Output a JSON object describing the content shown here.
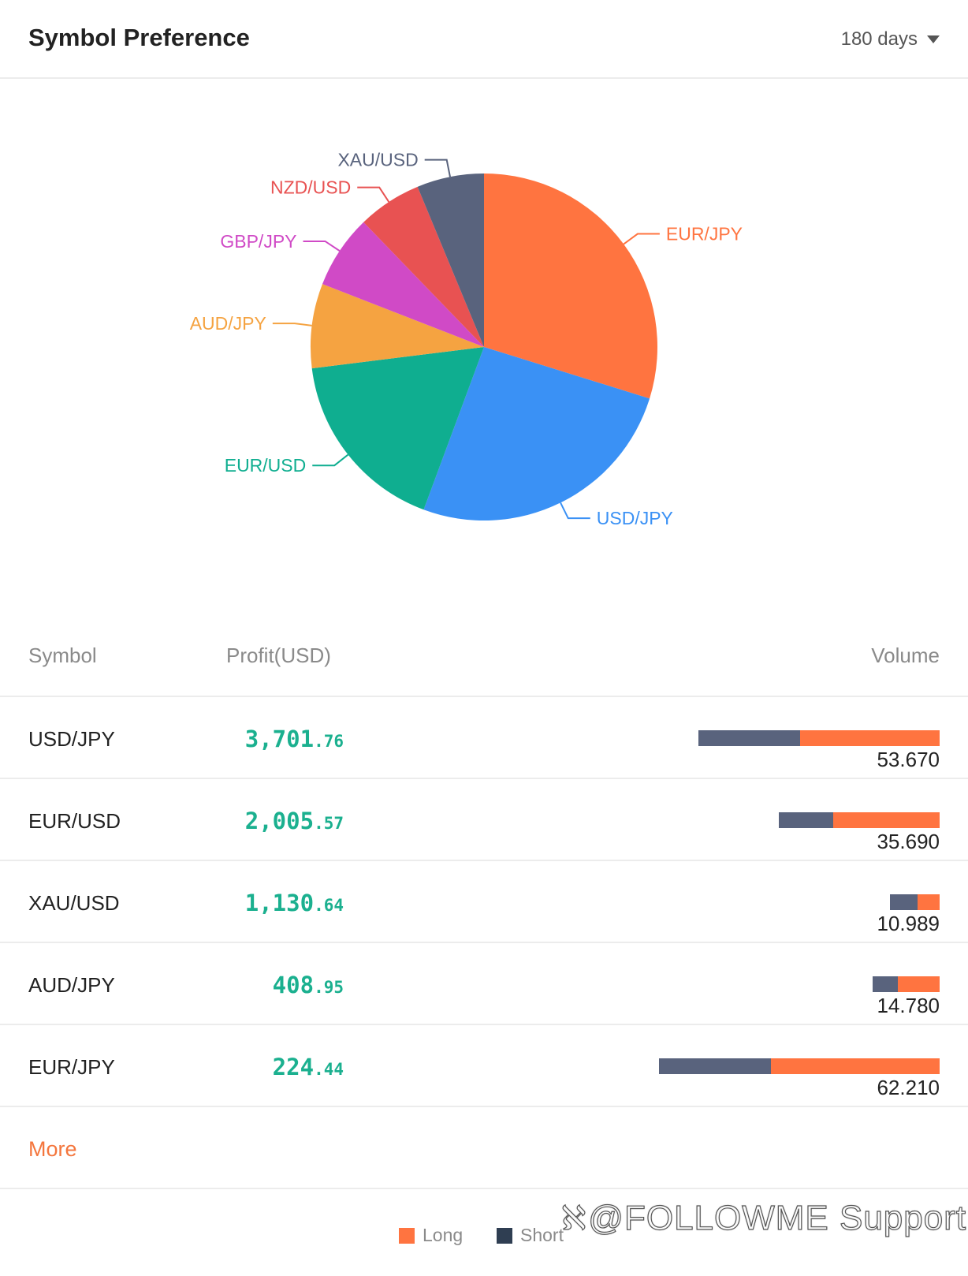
{
  "header": {
    "title": "Symbol Preference",
    "period_label": "180 days"
  },
  "chart_data": {
    "type": "pie",
    "title": "",
    "slices": [
      {
        "label": "EUR/JPY",
        "value": 29.5,
        "color": "#ff7440"
      },
      {
        "label": "USD/JPY",
        "value": 25.6,
        "color": "#3a91f5"
      },
      {
        "label": "EUR/USD",
        "value": 17.2,
        "color": "#0fae90"
      },
      {
        "label": "AUD/JPY",
        "value": 7.8,
        "color": "#f5a341"
      },
      {
        "label": "GBP/JPY",
        "value": 6.8,
        "color": "#d04ac6"
      },
      {
        "label": "NZD/USD",
        "value": 5.9,
        "color": "#e85252"
      },
      {
        "label": "XAU/USD",
        "value": 6.2,
        "color": "#59637d"
      }
    ]
  },
  "table": {
    "headers": {
      "symbol": "Symbol",
      "profit": "Profit(USD)",
      "volume": "Volume"
    },
    "rows": [
      {
        "symbol": "USD/JPY",
        "profit_int": "3,701",
        "profit_dec": ".76",
        "volume": "53.670",
        "short_share": 0.42
      },
      {
        "symbol": "EUR/USD",
        "profit_int": "2,005",
        "profit_dec": ".57",
        "volume": "35.690",
        "short_share": 0.34
      },
      {
        "symbol": "XAU/USD",
        "profit_int": "1,130",
        "profit_dec": ".64",
        "volume": "10.989",
        "short_share": 0.56
      },
      {
        "symbol": "AUD/JPY",
        "profit_int": "408",
        "profit_dec": ".95",
        "volume": "14.780",
        "short_share": 0.38
      },
      {
        "symbol": "EUR/JPY",
        "profit_int": "224",
        "profit_dec": ".44",
        "volume": "62.210",
        "short_share": 0.4
      }
    ]
  },
  "more_label": "More",
  "legend": {
    "long_label": "Long",
    "short_label": "Short",
    "long_color": "#ff7440",
    "short_color": "#2f3e52"
  },
  "watermark": "@FOLLOWME Support",
  "watermark_icon": "weibo-icon"
}
